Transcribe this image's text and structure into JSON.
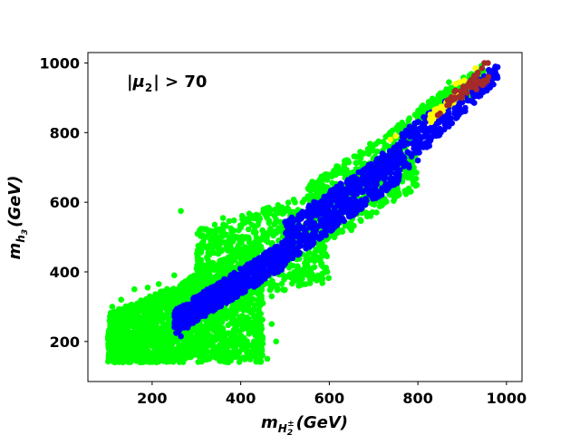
{
  "chart_data": {
    "type": "scatter",
    "title": "",
    "annotation": {
      "pre": "|",
      "mu": "μ",
      "sub": "2",
      "post": "| > 70"
    },
    "xlabel": {
      "main": "m",
      "sub": "H",
      "subsub": "2",
      "sup": "±",
      "unit": "(GeV)"
    },
    "ylabel": {
      "main": "m",
      "sub": "h",
      "subsub": "3",
      "unit": "(GeV)"
    },
    "xlim": [
      55,
      1035
    ],
    "ylim": [
      85,
      1030
    ],
    "xticks": [
      200,
      400,
      600,
      800,
      1000
    ],
    "yticks": [
      200,
      400,
      600,
      800,
      1000
    ],
    "grid": false,
    "series": [
      {
        "color": "#00ff00",
        "bands": [
          {
            "x": [
              100,
              250
            ],
            "lo": [
              140,
              140
            ],
            "hi": [
              280,
              360
            ],
            "n": 900
          },
          {
            "x": [
              250,
              450
            ],
            "lo": [
              140,
              140
            ],
            "hi": [
              360,
              500
            ],
            "n": 1100
          },
          {
            "x": [
              300,
              600
            ],
            "lo": [
              300,
              370
            ],
            "hi": [
              520,
              640
            ],
            "n": 700
          },
          {
            "x": [
              550,
              800
            ],
            "lo": [
              450,
              640
            ],
            "hi": [
              650,
              860
            ],
            "n": 500
          },
          {
            "x": [
              800,
              950
            ],
            "lo": [
              830,
              920
            ],
            "hi": [
              870,
              1000
            ],
            "n": 220
          }
        ],
        "points": [
          [
            265,
            575
          ],
          [
            360,
            555
          ],
          [
            380,
            500
          ],
          [
            330,
            380
          ],
          [
            420,
            380
          ],
          [
            450,
            310
          ],
          [
            470,
            330
          ],
          [
            480,
            400
          ],
          [
            530,
            395
          ],
          [
            560,
            410
          ],
          [
            570,
            440
          ],
          [
            585,
            480
          ],
          [
            620,
            560
          ],
          [
            640,
            580
          ],
          [
            650,
            520
          ],
          [
            690,
            620
          ],
          [
            700,
            700
          ],
          [
            735,
            740
          ],
          [
            760,
            800
          ],
          [
            775,
            820
          ],
          [
            800,
            840
          ],
          [
            840,
            880
          ],
          [
            860,
            915
          ],
          [
            880,
            930
          ],
          [
            870,
            945
          ],
          [
            830,
            870
          ],
          [
            110,
            300
          ],
          [
            130,
            320
          ],
          [
            160,
            350
          ],
          [
            190,
            355
          ],
          [
            215,
            365
          ],
          [
            250,
            390
          ],
          [
            190,
            170
          ],
          [
            160,
            165
          ],
          [
            140,
            175
          ],
          [
            120,
            200
          ],
          [
            115,
            255
          ],
          [
            135,
            220
          ],
          [
            300,
            180
          ],
          [
            350,
            150
          ],
          [
            420,
            165
          ],
          [
            460,
            150
          ],
          [
            480,
            200
          ],
          [
            470,
            250
          ],
          [
            445,
            230
          ],
          [
            430,
            270
          ],
          [
            408,
            210
          ]
        ]
      },
      {
        "color": "#0000ff",
        "bands": [
          {
            "x": [
              250,
              500
            ],
            "lo": [
              220,
              410
            ],
            "hi": [
              290,
              490
            ],
            "n": 700
          },
          {
            "x": [
              500,
              760
            ],
            "lo": [
              420,
              660
            ],
            "hi": [
              545,
              770
            ],
            "n": 600
          },
          {
            "x": [
              760,
              980
            ],
            "lo": [
              680,
              950
            ],
            "hi": [
              800,
              995
            ],
            "n": 280
          }
        ],
        "points": [
          [
            265,
            215
          ],
          [
            280,
            240
          ],
          [
            300,
            260
          ],
          [
            580,
            580
          ],
          [
            700,
            700
          ],
          [
            780,
            700
          ],
          [
            800,
            720
          ],
          [
            860,
            860
          ],
          [
            900,
            910
          ],
          [
            920,
            950
          ],
          [
            960,
            980
          ],
          [
            975,
            990
          ],
          [
            780,
            810
          ],
          [
            600,
            610
          ],
          [
            650,
            670
          ],
          [
            720,
            740
          ],
          [
            630,
            640
          ],
          [
            675,
            690
          ]
        ]
      },
      {
        "color": "#ffff00",
        "bands": [
          {
            "x": [
              820,
              900
            ],
            "lo": [
              825,
              900
            ],
            "hi": [
              850,
              930
            ],
            "n": 25
          }
        ],
        "points": [
          [
            905,
            950
          ],
          [
            895,
            945
          ],
          [
            930,
            985
          ],
          [
            750,
            790
          ],
          [
            738,
            780
          ],
          [
            830,
            830
          ],
          [
            885,
            940
          ]
        ]
      },
      {
        "color": "#a52a2a",
        "bands": [
          {
            "x": [
              860,
              960
            ],
            "lo": [
              870,
              945
            ],
            "hi": [
              895,
              1000
            ],
            "n": 45
          }
        ],
        "points": [
          [
            845,
            850
          ],
          [
            850,
            855
          ],
          [
            870,
            880
          ],
          [
            880,
            895
          ],
          [
            935,
            970
          ],
          [
            945,
            985
          ],
          [
            950,
            1000
          ],
          [
            958,
            1000
          ]
        ]
      }
    ]
  }
}
